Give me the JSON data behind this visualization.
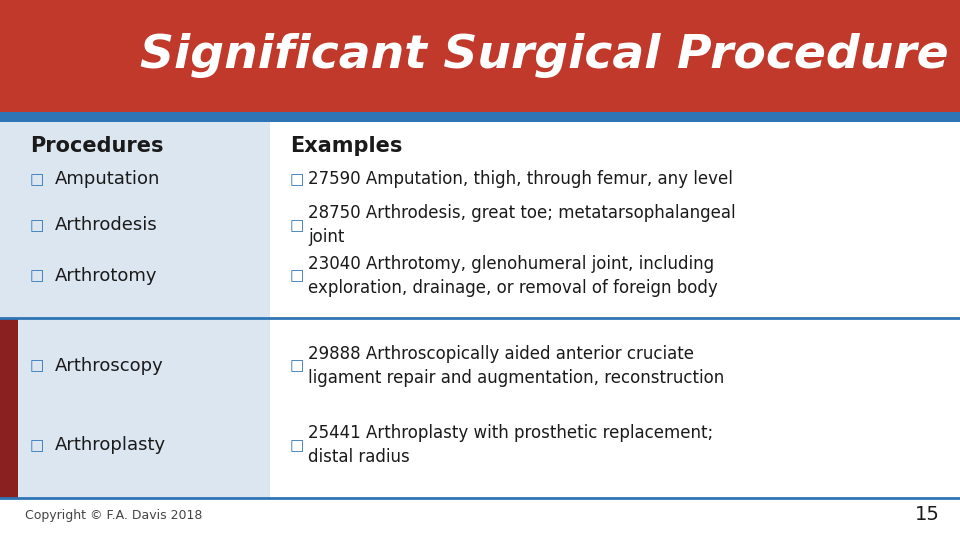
{
  "title": "Significant Surgical Procedure",
  "title_bg": "#C0392B",
  "title_color": "#FFFFFF",
  "accent_bar_color": "#2E75B6",
  "slide_bg": "#FFFFFF",
  "content_bg": "#DCE6F1",
  "left_accent_color": "#8B2020",
  "header_procedures": "Procedures",
  "header_examples": "Examples",
  "procedures": [
    "Amputation",
    "Arthrodesis",
    "Arthrotomy",
    "Arthroscopy",
    "Arthroplasty"
  ],
  "examples": [
    "27590 Amputation, thigh, through femur, any level",
    "28750 Arthrodesis, great toe; metatarsophalangeal\njoint",
    "23040 Arthrotomy, glenohumeral joint, including\nexploration, drainage, or removal of foreign body",
    "29888 Arthroscopically aided anterior cruciate\nligament repair and augmentation, reconstruction",
    "25441 Arthroplasty with prosthetic replacement;\ndistal radius"
  ],
  "copyright": "Copyright © F.A. Davis 2018",
  "page_number": "15",
  "accent_rows": [
    3,
    4
  ]
}
